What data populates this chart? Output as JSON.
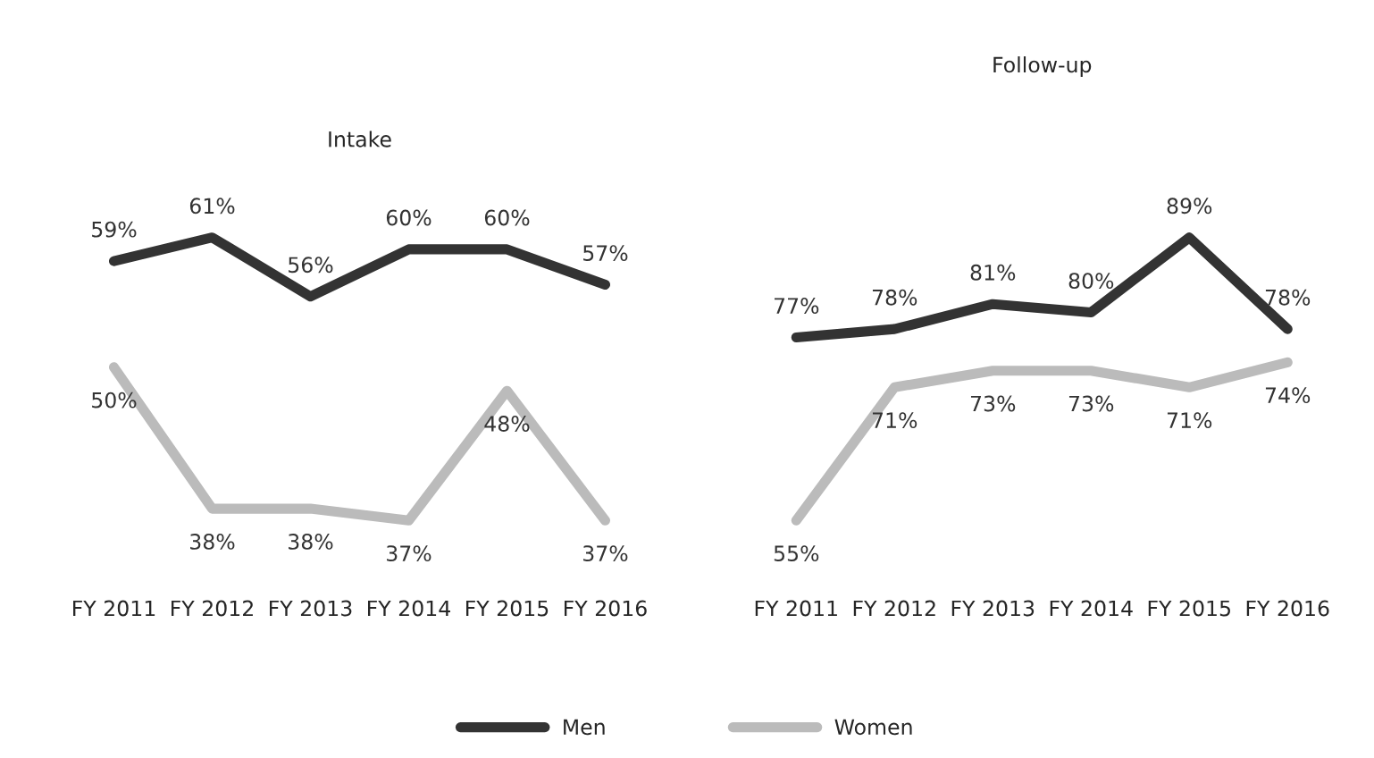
{
  "chart_data": [
    {
      "type": "line",
      "title": "Intake",
      "categories": [
        "FY 2011",
        "FY 2012",
        "FY 2013",
        "FY 2014",
        "FY 2015",
        "FY 2016"
      ],
      "series": [
        {
          "name": "Men",
          "color": "#333333",
          "values": [
            59,
            61,
            56,
            60,
            60,
            57
          ],
          "value_labels": [
            "59%",
            "61%",
            "56%",
            "60%",
            "60%",
            "57%"
          ]
        },
        {
          "name": "Women",
          "color": "#bbbbbb",
          "values": [
            50,
            38,
            38,
            37,
            48,
            37
          ],
          "value_labels": [
            "50%",
            "38%",
            "38%",
            "37%",
            "48%",
            "37%"
          ]
        }
      ],
      "tick_labels": "x",
      "legend": "bottom",
      "marker": "none",
      "line_style": "solid"
    },
    {
      "type": "line",
      "title": "Follow-up",
      "categories": [
        "FY 2011",
        "FY 2012",
        "FY 2013",
        "FY 2014",
        "FY 2015",
        "FY 2016"
      ],
      "series": [
        {
          "name": "Men",
          "color": "#333333",
          "values": [
            77,
            78,
            81,
            80,
            89,
            78
          ],
          "value_labels": [
            "77%",
            "78%",
            "81%",
            "80%",
            "89%",
            "78%"
          ]
        },
        {
          "name": "Women",
          "color": "#bbbbbb",
          "values": [
            55,
            71,
            73,
            73,
            71,
            74
          ],
          "value_labels": [
            "55%",
            "71%",
            "73%",
            "73%",
            "71%",
            "74%"
          ]
        }
      ],
      "tick_labels": "x",
      "legend": "bottom",
      "marker": "none",
      "line_style": "solid"
    }
  ]
}
